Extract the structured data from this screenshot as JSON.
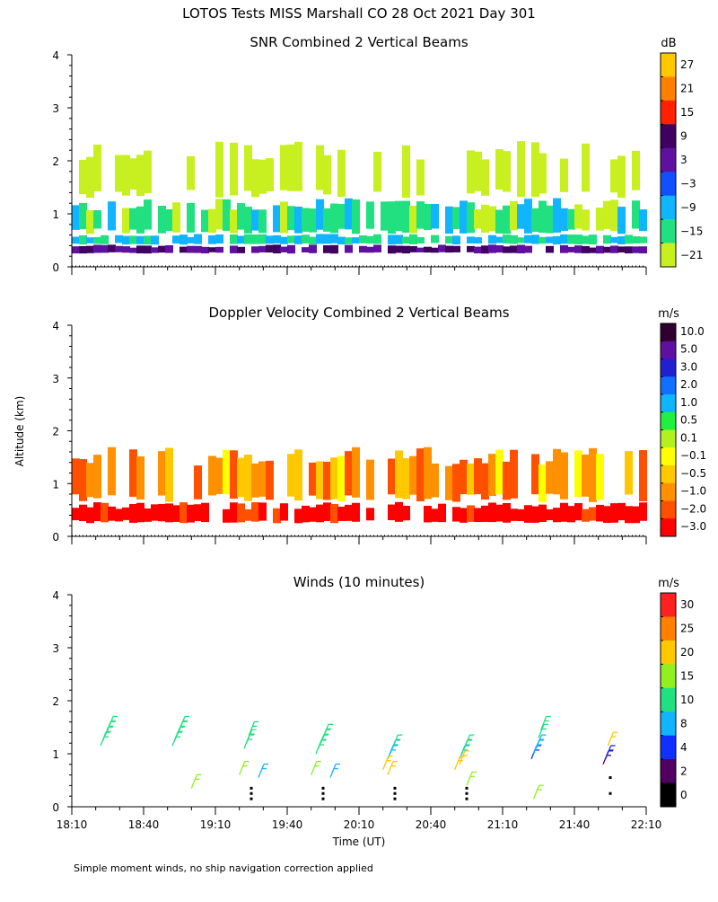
{
  "page_title": "LOTOS Tests MISS Marshall CO  28 Oct 2021 Day 301",
  "y_axis_label": "Altitude (km)",
  "x_axis_label": "Time (UT)",
  "footnote": "Simple moment winds, no ship navigation correction applied",
  "chart_data": [
    {
      "id": "snr",
      "type": "heatmap",
      "title": "SNR Combined 2 Vertical Beams",
      "xlabel": "",
      "ylabel": "Altitude (km)",
      "xlim_minutes": [
        0,
        240
      ],
      "ylim": [
        0,
        4
      ],
      "y_ticks": [
        "0",
        "1",
        "2",
        "3",
        "4"
      ],
      "colorbar": {
        "unit": "dB",
        "labels": [
          "27",
          "21",
          "15",
          "9",
          "3",
          "−3",
          "−9",
          "−15",
          "−21"
        ],
        "colors": [
          "#ffc800",
          "#ff8000",
          "#ff2000",
          "#400060",
          "#6010a0",
          "#1050ff",
          "#10b4ff",
          "#20e080",
          "#c8f020"
        ]
      },
      "layers": [
        {
          "band": "near-surface",
          "alt_bottom": 0.25,
          "alt_top": 0.42,
          "value_db": 8
        },
        {
          "band": "strong-layer",
          "alt_bottom": 0.42,
          "alt_top": 0.62,
          "value_db": -8
        },
        {
          "band": "boundary-layer",
          "alt_bottom": 0.62,
          "alt_top": 1.3,
          "value_db": -12
        },
        {
          "band": "upper-sparse",
          "alt_bottom": 1.3,
          "alt_top": 2.4,
          "value_db": -20
        }
      ]
    },
    {
      "id": "doppler",
      "type": "heatmap",
      "title": "Doppler Velocity Combined 2 Vertical Beams",
      "xlabel": "",
      "ylabel": "Altitude (km)",
      "xlim_minutes": [
        0,
        240
      ],
      "ylim": [
        0,
        4
      ],
      "y_ticks": [
        "0",
        "1",
        "2",
        "3",
        "4"
      ],
      "colorbar": {
        "unit": "m/s",
        "labels": [
          "10.0",
          "5.0",
          "3.0",
          "2.0",
          "1.0",
          "0.5",
          "0.1",
          "−0.1",
          "−0.5",
          "−1.0",
          "−2.0",
          "−3.0"
        ],
        "colors": [
          "#300030",
          "#6010a0",
          "#2020d0",
          "#1070ff",
          "#10b4ff",
          "#20f040",
          "#b4f020",
          "#ffff00",
          "#ffc800",
          "#ff9000",
          "#ff5000",
          "#ff0000"
        ]
      },
      "layers": [
        {
          "band": "surface",
          "alt_bottom": 0.25,
          "alt_top": 0.65,
          "value_ms": -2.5
        },
        {
          "band": "boundary-layer",
          "alt_bottom": 0.65,
          "alt_top": 1.7,
          "value_ms": -0.7
        }
      ]
    },
    {
      "id": "winds",
      "type": "scatter",
      "title": "Winds (10 minutes)",
      "xlabel": "Time (UT)",
      "ylabel": "Altitude (km)",
      "xlim_minutes": [
        0,
        240
      ],
      "ylim": [
        0,
        4
      ],
      "x_ticks": [
        "18:10",
        "18:40",
        "19:10",
        "19:40",
        "20:10",
        "20:40",
        "21:10",
        "21:40",
        "22:10"
      ],
      "y_ticks": [
        "0",
        "1",
        "2",
        "3",
        "4"
      ],
      "colorbar": {
        "unit": "m/s",
        "labels": [
          "30",
          "25",
          "20",
          "15",
          "10",
          "8",
          "4",
          "2",
          "0"
        ],
        "colors": [
          "#ff2020",
          "#ff8000",
          "#ffc800",
          "#90f020",
          "#20e080",
          "#10b4ff",
          "#1030ff",
          "#500060",
          "#000000"
        ]
      },
      "barbs": [
        {
          "time_min": 12,
          "alt_km": 1.15,
          "speed": 13
        },
        {
          "time_min": 13,
          "alt_km": 1.25,
          "speed": 13
        },
        {
          "time_min": 14,
          "alt_km": 1.35,
          "speed": 12
        },
        {
          "time_min": 15,
          "alt_km": 1.45,
          "speed": 13
        },
        {
          "time_min": 42,
          "alt_km": 1.15,
          "speed": 13
        },
        {
          "time_min": 43,
          "alt_km": 1.25,
          "speed": 12
        },
        {
          "time_min": 44,
          "alt_km": 1.35,
          "speed": 13
        },
        {
          "time_min": 45,
          "alt_km": 1.45,
          "speed": 12
        },
        {
          "time_min": 50,
          "alt_km": 0.35,
          "speed": 18
        },
        {
          "time_min": 72,
          "alt_km": 1.1,
          "speed": 13
        },
        {
          "time_min": 73,
          "alt_km": 1.2,
          "speed": 12
        },
        {
          "time_min": 74,
          "alt_km": 1.35,
          "speed": 13
        },
        {
          "time_min": 70,
          "alt_km": 0.6,
          "speed": 17
        },
        {
          "time_min": 78,
          "alt_km": 0.55,
          "speed": 9
        },
        {
          "time_min": 102,
          "alt_km": 1.0,
          "speed": 12
        },
        {
          "time_min": 103,
          "alt_km": 1.1,
          "speed": 13
        },
        {
          "time_min": 104,
          "alt_km": 1.2,
          "speed": 13
        },
        {
          "time_min": 105,
          "alt_km": 1.3,
          "speed": 12
        },
        {
          "time_min": 100,
          "alt_km": 0.6,
          "speed": 17
        },
        {
          "time_min": 108,
          "alt_km": 0.55,
          "speed": 9
        },
        {
          "time_min": 132,
          "alt_km": 0.9,
          "speed": 9
        },
        {
          "time_min": 133,
          "alt_km": 1.0,
          "speed": 9
        },
        {
          "time_min": 134,
          "alt_km": 1.1,
          "speed": 12
        },
        {
          "time_min": 130,
          "alt_km": 0.7,
          "speed": 24
        },
        {
          "time_min": 132,
          "alt_km": 0.6,
          "speed": 23
        },
        {
          "time_min": 162,
          "alt_km": 0.9,
          "speed": 9
        },
        {
          "time_min": 163,
          "alt_km": 1.0,
          "speed": 12
        },
        {
          "time_min": 164,
          "alt_km": 1.1,
          "speed": 13
        },
        {
          "time_min": 160,
          "alt_km": 0.7,
          "speed": 24
        },
        {
          "time_min": 162,
          "alt_km": 0.8,
          "speed": 23
        },
        {
          "time_min": 165,
          "alt_km": 0.4,
          "speed": 17
        },
        {
          "time_min": 192,
          "alt_km": 0.9,
          "speed": 4
        },
        {
          "time_min": 193,
          "alt_km": 1.0,
          "speed": 8
        },
        {
          "time_min": 194,
          "alt_km": 1.1,
          "speed": 9
        },
        {
          "time_min": 195,
          "alt_km": 1.3,
          "speed": 13
        },
        {
          "time_min": 196,
          "alt_km": 1.45,
          "speed": 13
        },
        {
          "time_min": 193,
          "alt_km": 0.15,
          "speed": 17
        },
        {
          "time_min": 222,
          "alt_km": 0.8,
          "speed": 3
        },
        {
          "time_min": 223,
          "alt_km": 0.9,
          "speed": 4
        },
        {
          "time_min": 224,
          "alt_km": 1.15,
          "speed": 22
        }
      ],
      "dots": [
        {
          "time_min": 75,
          "alt_km": 0.35
        },
        {
          "time_min": 75,
          "alt_km": 0.25
        },
        {
          "time_min": 75,
          "alt_km": 0.15
        },
        {
          "time_min": 105,
          "alt_km": 0.35
        },
        {
          "time_min": 105,
          "alt_km": 0.25
        },
        {
          "time_min": 105,
          "alt_km": 0.15
        },
        {
          "time_min": 135,
          "alt_km": 0.35
        },
        {
          "time_min": 135,
          "alt_km": 0.25
        },
        {
          "time_min": 135,
          "alt_km": 0.15
        },
        {
          "time_min": 165,
          "alt_km": 0.35
        },
        {
          "time_min": 165,
          "alt_km": 0.25
        },
        {
          "time_min": 165,
          "alt_km": 0.15
        },
        {
          "time_min": 225,
          "alt_km": 0.55
        },
        {
          "time_min": 225,
          "alt_km": 0.25
        }
      ]
    }
  ]
}
